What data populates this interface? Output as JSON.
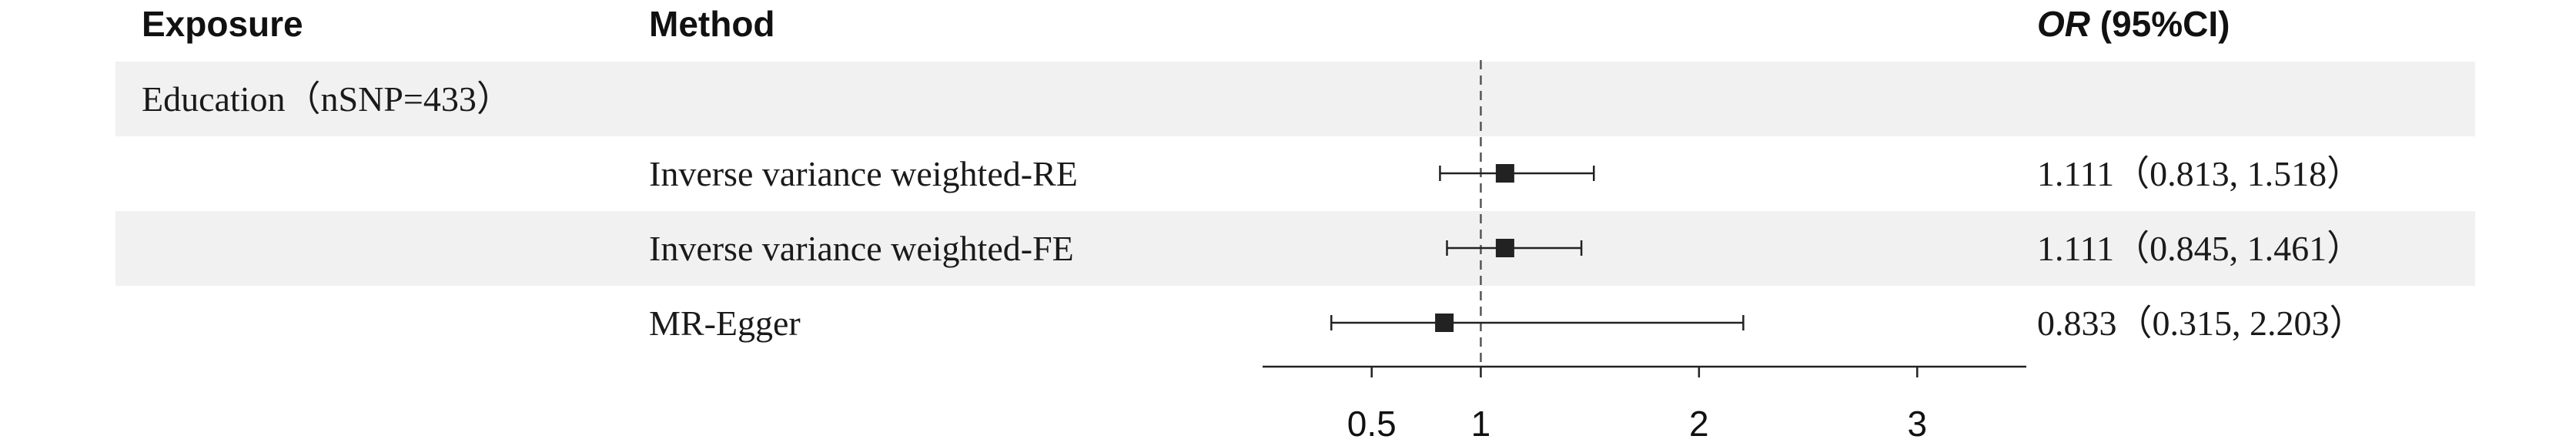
{
  "headers": {
    "exposure": "Exposure",
    "method": "Method",
    "or_italic": "OR",
    "or_rest": " (95%CI)"
  },
  "exposure_group": "Education（nSNP=433）",
  "rows": [
    {
      "method": "Inverse variance weighted-RE",
      "or_text": "1.111（0.813, 1.518）"
    },
    {
      "method": "Inverse variance weighted-FE",
      "or_text": "1.111（0.845, 1.461）"
    },
    {
      "method": "MR-Egger",
      "or_text": "0.833（0.315, 2.203）"
    }
  ],
  "chart_data": {
    "type": "forest",
    "title": "",
    "xlabel": "",
    "ylabel": "",
    "xlim": [
      0.0,
      3.5
    ],
    "reference_line": 1,
    "x_ticks": [
      0.5,
      1,
      2,
      3
    ],
    "x_tick_labels": [
      "0.5",
      "1",
      "2",
      "3"
    ],
    "points": [
      {
        "label": "Inverse variance weighted-RE",
        "or": 1.111,
        "lower": 0.813,
        "upper": 1.518
      },
      {
        "label": "Inverse variance weighted-FE",
        "or": 1.111,
        "lower": 0.845,
        "upper": 1.461
      },
      {
        "label": "MR-Egger",
        "or": 0.833,
        "lower": 0.315,
        "upper": 2.203
      }
    ],
    "colors": {
      "marker": "#222222",
      "ref_line": "#555555",
      "axis": "#222222"
    }
  }
}
